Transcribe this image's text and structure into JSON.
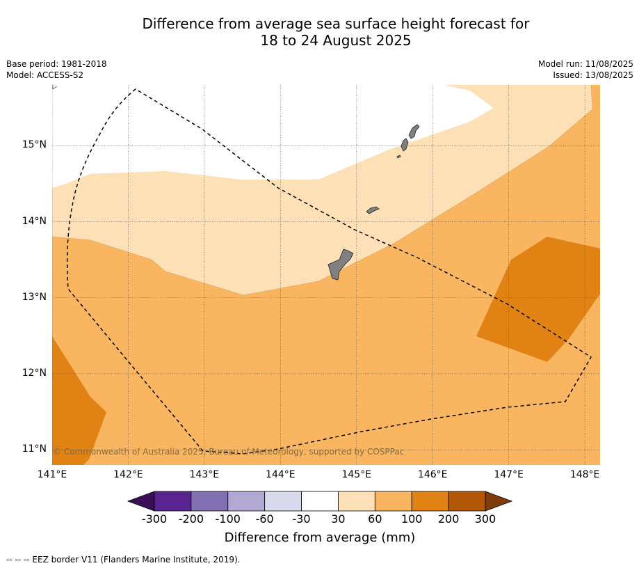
{
  "title_line1": "Difference from average sea surface height forecast for",
  "title_line2": "18 to 24 August 2025",
  "meta": {
    "base_period": "Base period: 1981-2018",
    "model": "Model: ACCESS-S2",
    "model_run": "Model run: 11/08/2025",
    "issued": "Issued: 13/08/2025"
  },
  "copyright": "© Commonwealth of Australia 2025, Bureau of Meteorology, supported by COSPPac",
  "footnote": "--  --  -- EEZ border V11 (Flanders Marine Institute, 2019).",
  "map": {
    "lon_range": [
      141.0,
      148.2
    ],
    "lat_range": [
      10.8,
      15.8
    ],
    "lon_ticks": [
      "141°E",
      "142°E",
      "143°E",
      "144°E",
      "145°E",
      "146°E",
      "147°E",
      "148°E"
    ],
    "lat_ticks": [
      "15°N",
      "14°N",
      "13°N",
      "12°N",
      "11°N"
    ],
    "grid": true
  },
  "colorbar": {
    "title": "Difference from average (mm)",
    "labels": [
      "-300",
      "-200",
      "-100",
      "-60",
      "-30",
      "30",
      "60",
      "100",
      "200",
      "300"
    ],
    "colors": {
      "below": "#3b0f55",
      "bins": [
        "#5a2490",
        "#8171b2",
        "#b1a9d4",
        "#d9d9eb",
        "#ffffff",
        "#fde0b6",
        "#f9b560",
        "#e08214",
        "#b35806"
      ],
      "above": "#7f3b08"
    }
  },
  "legend_colors": {
    "band_30_60": "#fde0b6",
    "band_60_100": "#f9b560",
    "band_100_200": "#e08214",
    "land": "#808080"
  }
}
